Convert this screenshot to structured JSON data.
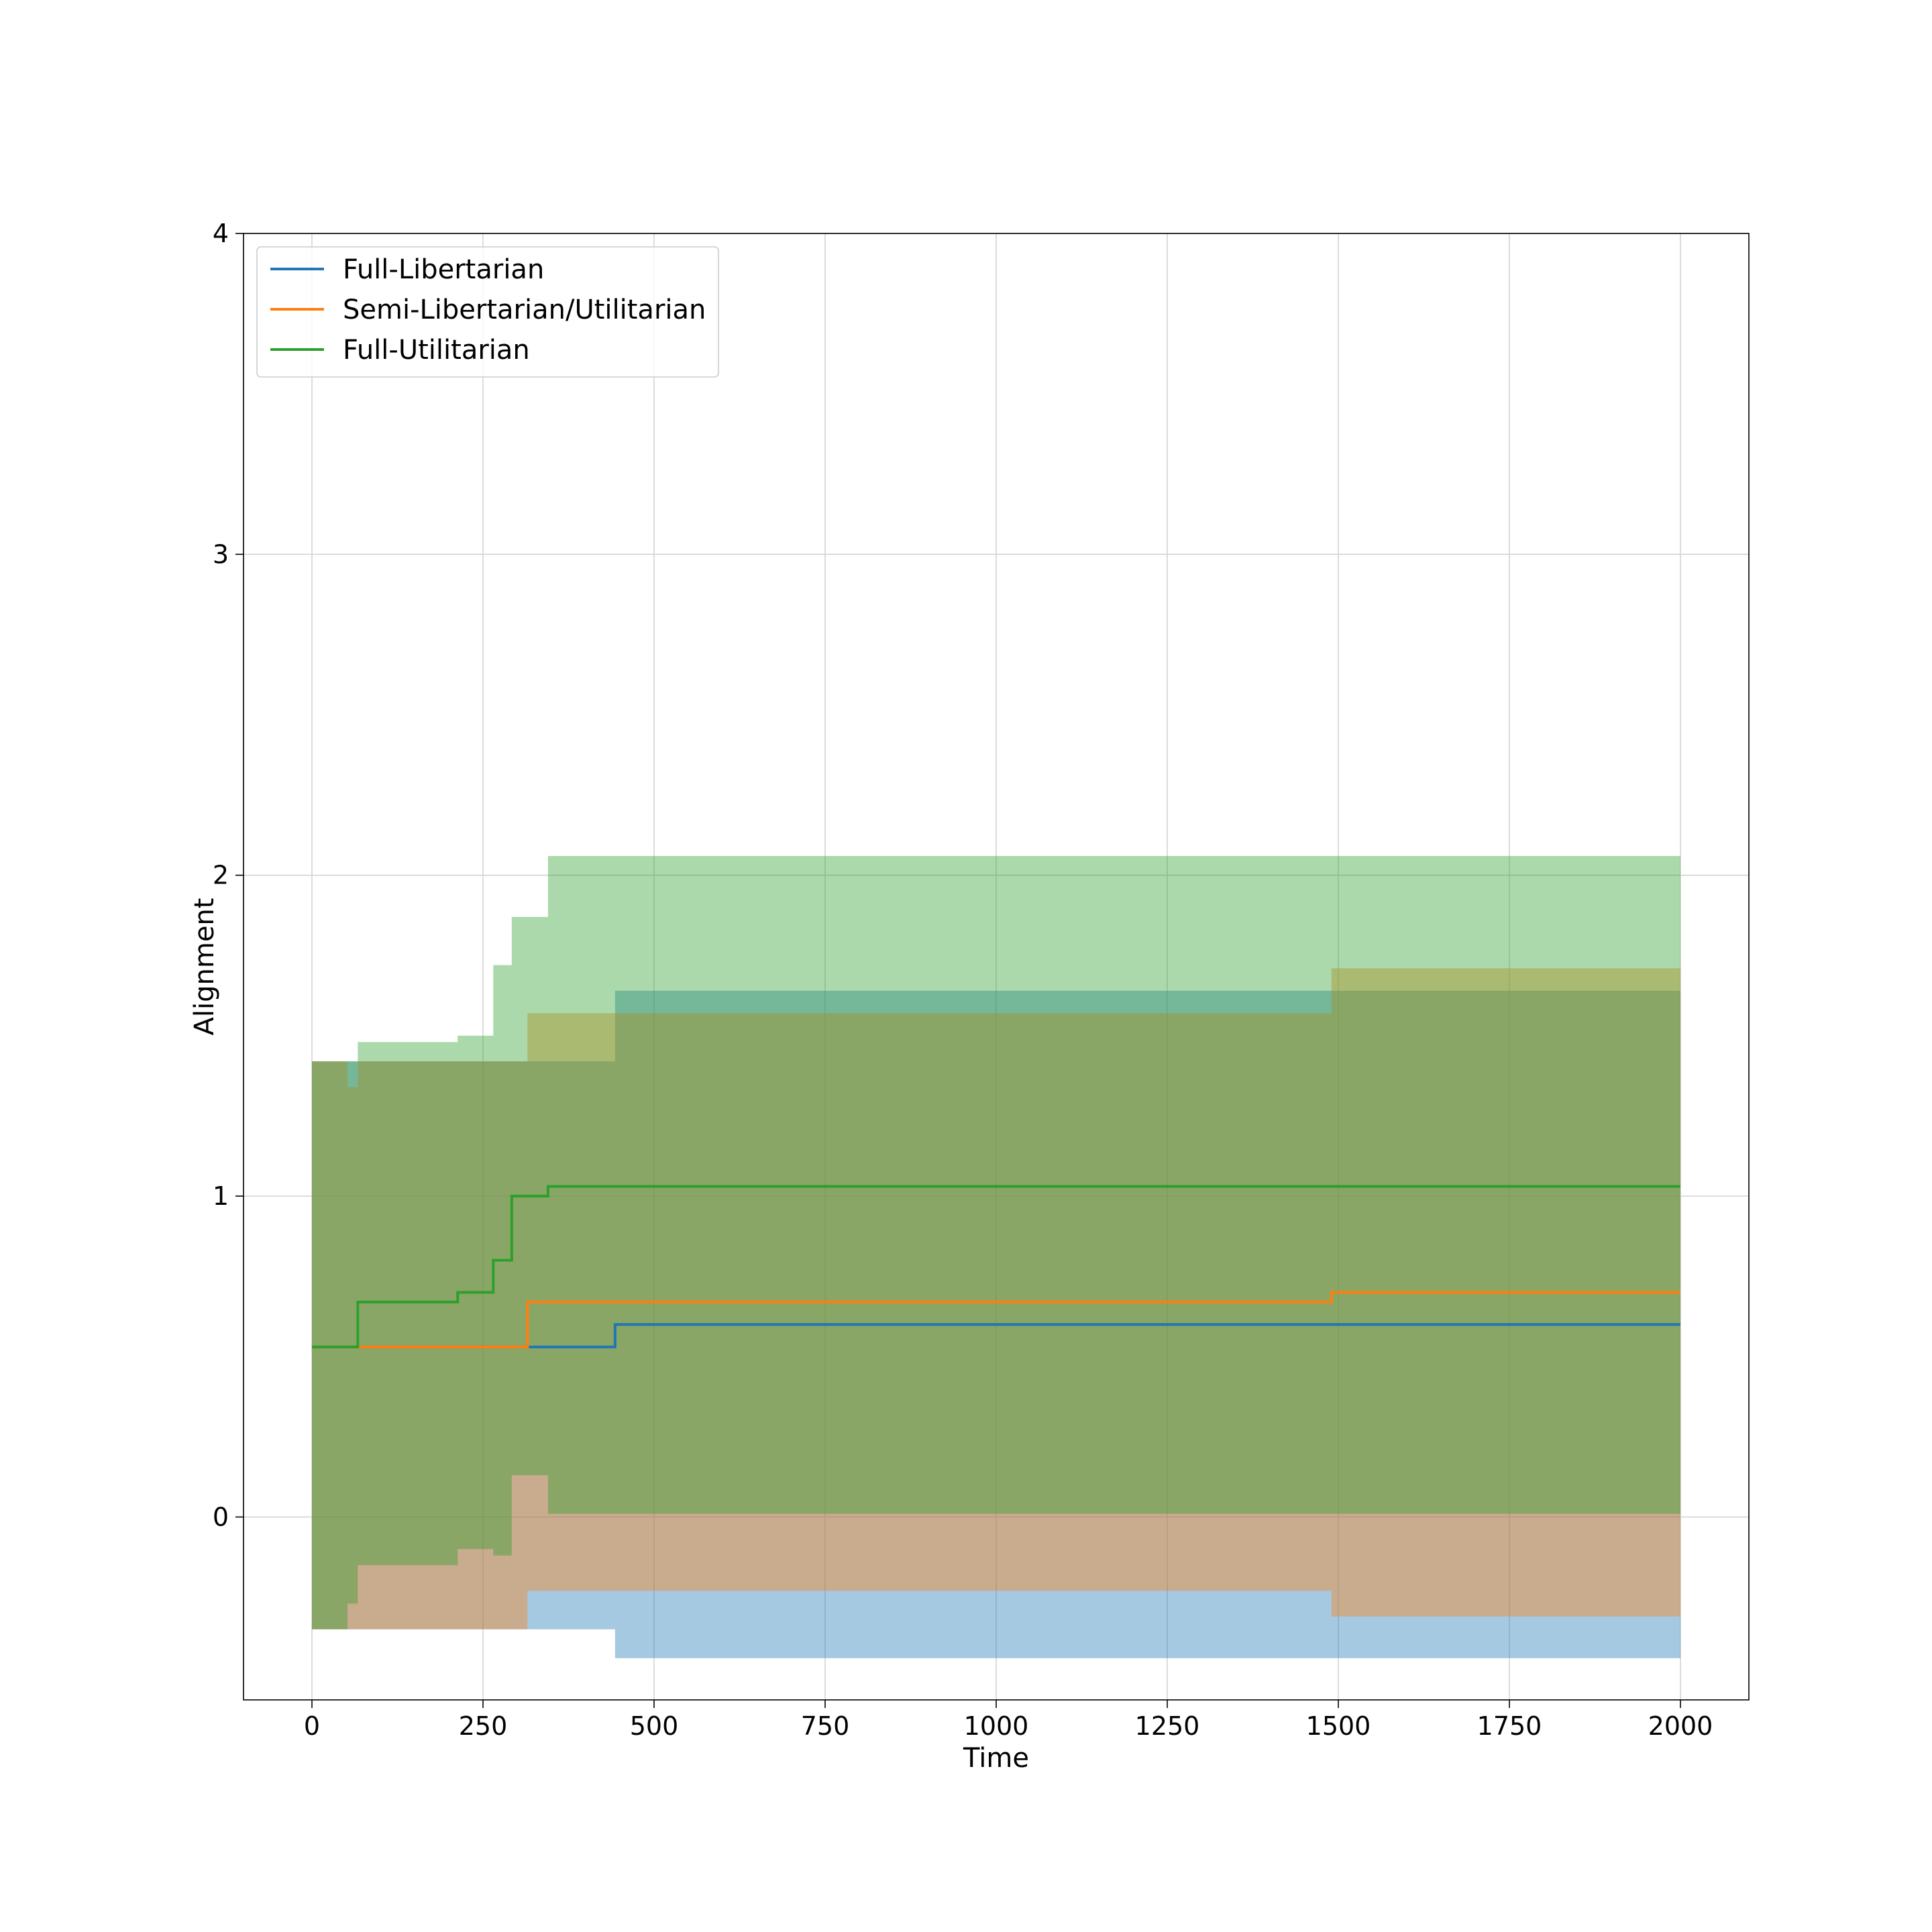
{
  "chart_data": {
    "type": "line",
    "xlabel": "Time",
    "ylabel": "Alignment",
    "xlim": [
      -100,
      2100
    ],
    "ylim": [
      -0.57,
      4
    ],
    "xticks": [
      "0",
      "250",
      "500",
      "750",
      "1000",
      "1250",
      "1500",
      "1750",
      "2000"
    ],
    "yticks": [
      "0",
      "1",
      "2",
      "3",
      "4"
    ],
    "grid": true,
    "legend_position": "upper-left",
    "series": [
      {
        "name": "Full-Libertarian",
        "color": "#1f77b4",
        "fill_color": "#1f77b4",
        "mean": [
          [
            0,
            0.53
          ],
          [
            315,
            0.53
          ],
          [
            315,
            0.53
          ],
          [
            443,
            0.53
          ],
          [
            443,
            0.6
          ],
          [
            2000,
            0.6
          ]
        ],
        "upper": [
          [
            0,
            1.42
          ],
          [
            443,
            1.42
          ],
          [
            443,
            1.64
          ],
          [
            2000,
            1.64
          ]
        ],
        "lower": [
          [
            0,
            -0.35
          ],
          [
            315,
            -0.35
          ],
          [
            315,
            -0.35
          ],
          [
            443,
            -0.35
          ],
          [
            443,
            -0.44
          ],
          [
            2000,
            -0.44
          ]
        ]
      },
      {
        "name": "Semi-Libertarian/Utilitarian",
        "color": "#ff7f0e",
        "fill_color": "#ff7f0e",
        "mean": [
          [
            0,
            0.53
          ],
          [
            315,
            0.53
          ],
          [
            315,
            0.67
          ],
          [
            1490,
            0.67
          ],
          [
            1490,
            0.7
          ],
          [
            2000,
            0.7
          ]
        ],
        "upper": [
          [
            0,
            1.42
          ],
          [
            52,
            1.42
          ],
          [
            52,
            1.34
          ],
          [
            67,
            1.34
          ],
          [
            67,
            1.42
          ],
          [
            315,
            1.42
          ],
          [
            315,
            1.57
          ],
          [
            1490,
            1.57
          ],
          [
            1490,
            1.71
          ],
          [
            2000,
            1.71
          ]
        ],
        "lower": [
          [
            0,
            -0.35
          ],
          [
            315,
            -0.35
          ],
          [
            315,
            -0.23
          ],
          [
            1490,
            -0.23
          ],
          [
            1490,
            -0.31
          ],
          [
            2000,
            -0.31
          ]
        ]
      },
      {
        "name": "Full-Utilitarian",
        "color": "#2ca02c",
        "fill_color": "#2ca02c",
        "mean": [
          [
            0,
            0.53
          ],
          [
            67,
            0.53
          ],
          [
            67,
            0.67
          ],
          [
            213,
            0.67
          ],
          [
            213,
            0.7
          ],
          [
            265,
            0.7
          ],
          [
            265,
            0.8
          ],
          [
            292,
            0.8
          ],
          [
            292,
            1.0
          ],
          [
            345,
            1.0
          ],
          [
            345,
            1.03
          ],
          [
            2000,
            1.03
          ]
        ],
        "upper": [
          [
            0,
            1.42
          ],
          [
            67,
            1.42
          ],
          [
            67,
            1.48
          ],
          [
            213,
            1.48
          ],
          [
            213,
            1.5
          ],
          [
            265,
            1.5
          ],
          [
            265,
            1.72
          ],
          [
            292,
            1.72
          ],
          [
            292,
            1.87
          ],
          [
            345,
            1.87
          ],
          [
            345,
            2.06
          ],
          [
            2000,
            2.06
          ]
        ],
        "lower": [
          [
            0,
            -0.35
          ],
          [
            52,
            -0.35
          ],
          [
            52,
            -0.27
          ],
          [
            67,
            -0.27
          ],
          [
            67,
            -0.15
          ],
          [
            213,
            -0.15
          ],
          [
            213,
            -0.1
          ],
          [
            265,
            -0.1
          ],
          [
            265,
            -0.12
          ],
          [
            292,
            -0.12
          ],
          [
            292,
            0.13
          ],
          [
            345,
            0.13
          ],
          [
            345,
            0.01
          ],
          [
            2000,
            0.01
          ]
        ]
      }
    ]
  }
}
